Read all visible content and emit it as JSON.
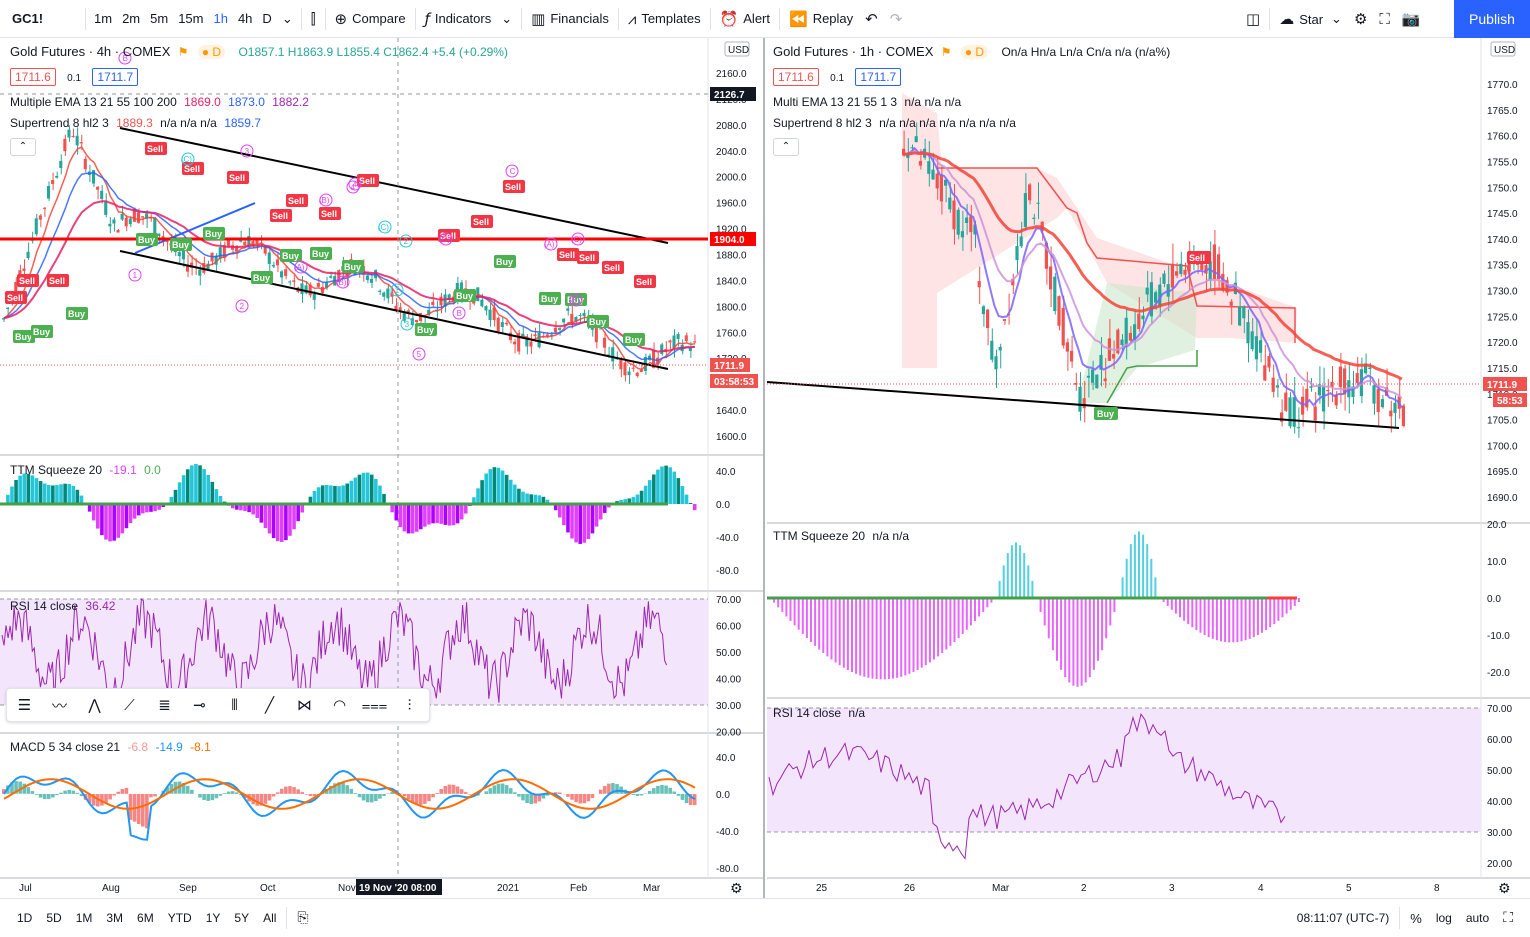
{
  "toolbar": {
    "symbol": "GC1!",
    "intervals": [
      "1m",
      "2m",
      "5m",
      "15m",
      "1h",
      "4h",
      "D"
    ],
    "active_interval": "1h",
    "compare": "Compare",
    "indicators": "Indicators",
    "financials": "Financials",
    "templates": "Templates",
    "alert": "Alert",
    "replay": "Replay",
    "star": "Star",
    "publish": "Publish"
  },
  "left_chart": {
    "title": "Gold Futures · 4h · COMEX",
    "ohlc": "O1857.1 H1863.9 L1855.4 C1862.4 +5.4 (+0.29%)",
    "bid": "1711.6",
    "spread": "0.1",
    "ask": "1711.7",
    "ema_legend": "Multiple EMA 13 21 55 100 200",
    "ema_values": [
      "1869.0",
      "1873.0",
      "1882.2"
    ],
    "supertrend_legend": "Supertrend 8 hl2 3",
    "supertrend_values": "n/a n/a n/a",
    "supertrend_v1": "1889.3",
    "supertrend_v2": "1859.7",
    "currency": "USD",
    "price_ticks": [
      "2160.0",
      "2120.0",
      "2080.0",
      "2040.0",
      "2000.0",
      "1960.0",
      "1920.0",
      "1880.0",
      "1840.0",
      "1800.0",
      "1760.0",
      "1720.0",
      "1680.0",
      "1640.0",
      "1600.0"
    ],
    "crosshair_price": "2126.7",
    "hline_price": "1904.0",
    "last_price": "1711.9",
    "countdown": "03:58:53",
    "time_labels": [
      "Jul",
      "Aug",
      "Sep",
      "Oct",
      "Nov",
      "2021",
      "Feb",
      "Mar"
    ],
    "crosshair_time": "19 Nov '20   08:00",
    "ttm": {
      "legend": "TTM Squeeze 20",
      "v1": "-19.1",
      "v2": "0.0",
      "ticks": [
        "40.0",
        "0.0",
        "-40.0",
        "-80.0"
      ]
    },
    "rsi": {
      "legend": "RSI 14 close",
      "value": "36.42",
      "ticks": [
        "70.00",
        "60.00",
        "50.00",
        "40.00",
        "30.00",
        "20.00"
      ]
    },
    "macd": {
      "legend": "MACD 5 34 close 21",
      "v1": "-6.8",
      "v2": "-14.9",
      "v3": "-8.1",
      "ticks": [
        "40.0",
        "0.0",
        "-40.0",
        "-80.0"
      ]
    }
  },
  "right_chart": {
    "title": "Gold Futures · 1h · COMEX",
    "ohlc": "On/a Hn/a Ln/a Cn/a n/a (n/a%)",
    "bid": "1711.6",
    "spread": "0.1",
    "ask": "1711.7",
    "ema_legend": "Multi EMA 13 21 55 1 3",
    "ema_values": "n/a n/a n/a",
    "supertrend_legend": "Supertrend 8 hl2 3",
    "supertrend_values": "n/a n/a n/a n/a n/a n/a n/a",
    "currency": "USD",
    "price_ticks": [
      "1770.0",
      "1765.0",
      "1760.0",
      "1755.0",
      "1750.0",
      "1745.0",
      "1740.0",
      "1735.0",
      "1730.0",
      "1725.0",
      "1720.0",
      "1715.0",
      "1710.0",
      "1705.0",
      "1700.0",
      "1695.0",
      "1690.0"
    ],
    "last_price": "1711.9",
    "countdown": "58:53",
    "time_labels": [
      "25",
      "26",
      "Mar",
      "2",
      "3",
      "4",
      "5",
      "8"
    ],
    "ttm": {
      "legend": "TTM Squeeze 20",
      "values": "n/a n/a",
      "ticks": [
        "20.0",
        "10.0",
        "0.0",
        "-10.0",
        "-20.0"
      ]
    },
    "rsi": {
      "legend": "RSI 14 close",
      "value": "n/a",
      "ticks": [
        "70.00",
        "60.00",
        "50.00",
        "40.00",
        "30.00",
        "20.00"
      ]
    }
  },
  "bottombar": {
    "ranges": [
      "1D",
      "5D",
      "1M",
      "3M",
      "6M",
      "YTD",
      "1Y",
      "5Y",
      "All"
    ],
    "time": "08:11:07 (UTC-7)",
    "percent": "%",
    "log": "log",
    "auto": "auto"
  },
  "marker_labels": {
    "buy": "Buy",
    "sell": "Sell"
  },
  "wave_labels": [
    "B",
    "(C)",
    "3",
    "4",
    "(B)",
    "C",
    "2",
    "(A)",
    "(B)",
    "(C)",
    "(A)",
    "(B)",
    "(C)",
    "1",
    "1",
    "3",
    "5",
    "B",
    "2",
    "(C)",
    "4"
  ],
  "colors": {
    "accent": "#2962ff",
    "bull": "#26a69a",
    "bear": "#ef5350",
    "buy_marker": "#4caf50",
    "sell_marker": "#f23645",
    "hline": "#ff0000",
    "rsi_band": "#f3e5fc",
    "ema_fast": "#f44",
    "ema_mid": "#7b61ff",
    "ema_slow": "#e91e63"
  },
  "icons": [
    "candle-style-icon",
    "compare-plus-icon",
    "indicators-fx-icon",
    "financials-icon",
    "templates-icon",
    "alert-clock-icon",
    "replay-icon",
    "undo-icon",
    "redo-icon",
    "layout-icon",
    "cloud-icon",
    "settings-gear-icon",
    "fullscreen-icon",
    "camera-icon"
  ]
}
